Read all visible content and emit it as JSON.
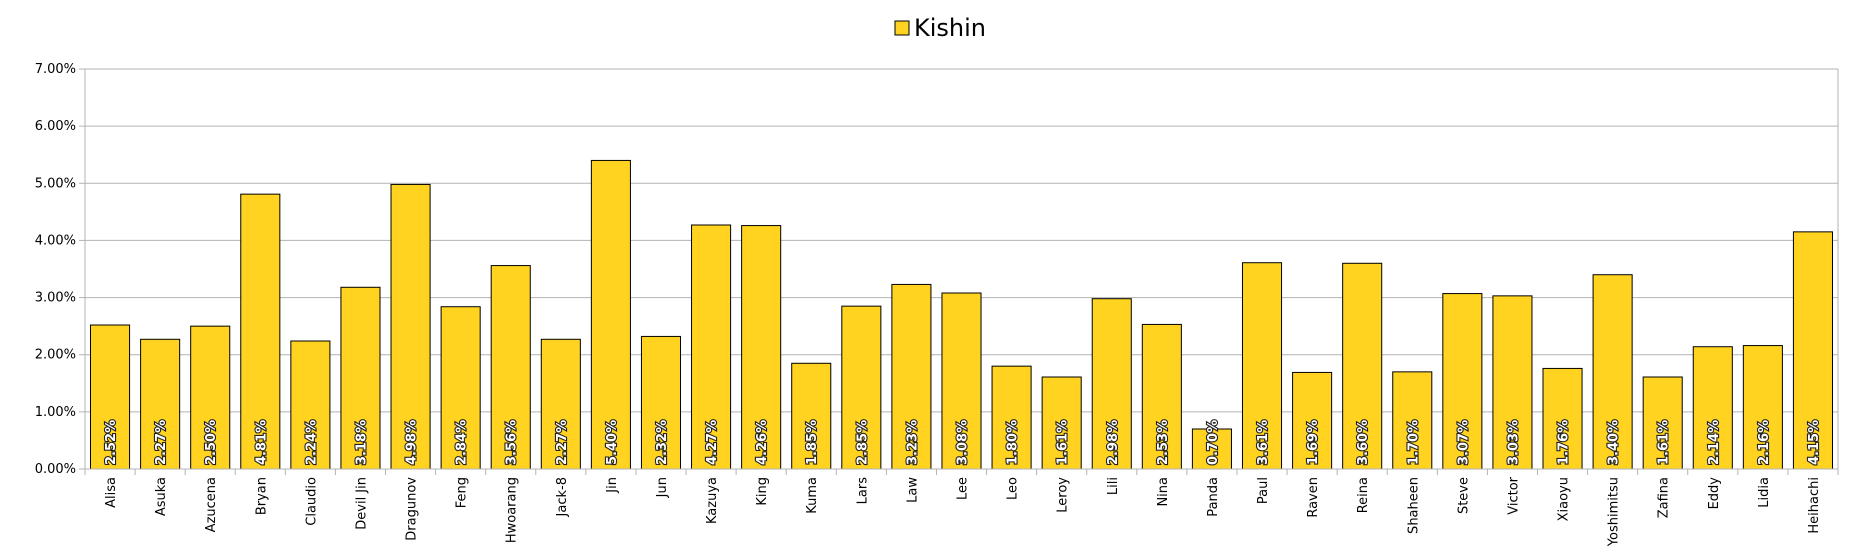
{
  "chart_data": {
    "type": "bar",
    "legend": {
      "position": "top-center"
    },
    "series": [
      {
        "name": "Kishin",
        "color": "#FFD320",
        "values": [
          2.52,
          2.27,
          2.5,
          4.81,
          2.24,
          3.18,
          4.98,
          2.84,
          3.56,
          2.27,
          5.4,
          2.32,
          4.27,
          4.26,
          1.85,
          2.85,
          3.23,
          3.08,
          1.8,
          1.61,
          2.98,
          2.53,
          0.7,
          3.61,
          1.69,
          3.6,
          1.7,
          3.07,
          3.03,
          1.76,
          3.4,
          1.61,
          2.14,
          2.16,
          4.15
        ],
        "labels": [
          "2.52%",
          "2.27%",
          "2.50%",
          "4.81%",
          "2.24%",
          "3.18%",
          "4.98%",
          "2.84%",
          "3.56%",
          "2.27%",
          "5.40%",
          "2.32%",
          "4.27%",
          "4.26%",
          "1.85%",
          "2.85%",
          "3.23%",
          "3.08%",
          "1.80%",
          "1.61%",
          "2.98%",
          "2.53%",
          "0.70%",
          "3.61%",
          "1.69%",
          "3.60%",
          "1.70%",
          "3.07%",
          "3.03%",
          "1.76%",
          "3.40%",
          "1.61%",
          "2.14%",
          "2.16%",
          "4.15%"
        ]
      }
    ],
    "categories": [
      "Alisa",
      "Asuka",
      "Azucena",
      "Bryan",
      "Claudio",
      "Devil Jin",
      "Dragunov",
      "Feng",
      "Hwoarang",
      "Jack-8",
      "Jin",
      "Jun",
      "Kazuya",
      "King",
      "Kuma",
      "Lars",
      "Law",
      "Lee",
      "Leo",
      "Leroy",
      "Lili",
      "Nina",
      "Panda",
      "Paul",
      "Raven",
      "Reina",
      "Shaheen",
      "Steve",
      "Victor",
      "Xiaoyu",
      "Yoshimitsu",
      "Zafina",
      "Eddy",
      "Lidia",
      "Heihachi"
    ],
    "ylim": [
      0,
      7
    ],
    "yticks": [
      0,
      1,
      2,
      3,
      4,
      5,
      6,
      7
    ],
    "ytick_labels": [
      "0.00%",
      "1.00%",
      "2.00%",
      "3.00%",
      "4.00%",
      "5.00%",
      "6.00%",
      "7.00%"
    ],
    "grid": true,
    "title": "",
    "xlabel": "",
    "ylabel": ""
  }
}
